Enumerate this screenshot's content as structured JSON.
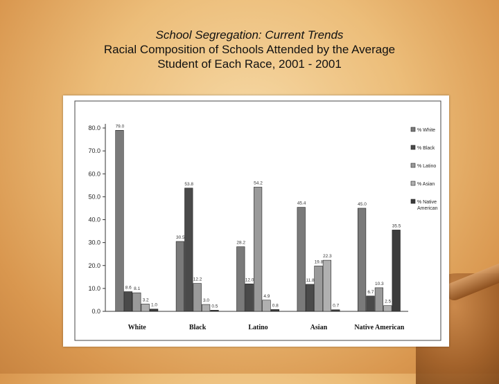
{
  "slide": {
    "title_line1": "School Segregation: Current Trends",
    "title_line2": "Racial Composition of Schools Attended by the Average",
    "title_line3": "Student of Each Race, 2001 - 2001"
  },
  "chart_data": {
    "type": "bar",
    "categories": [
      "White",
      "Black",
      "Latino",
      "Asian",
      "Native American"
    ],
    "series": [
      {
        "name": "% White",
        "color": "#7a7a7a",
        "values": [
          79.0,
          30.5,
          28.2,
          45.4,
          45.0
        ]
      },
      {
        "name": "% Black",
        "color": "#4a4a4a",
        "values": [
          8.6,
          53.8,
          12.0,
          11.8,
          6.7
        ]
      },
      {
        "name": "% Latino",
        "color": "#9a9a9a",
        "values": [
          8.1,
          12.2,
          54.2,
          19.8,
          10.3
        ]
      },
      {
        "name": "% Asian",
        "color": "#b0b0b0",
        "values": [
          3.2,
          3.0,
          4.9,
          22.3,
          2.5
        ]
      },
      {
        "name": "% Native American",
        "color": "#3c3c3c",
        "values": [
          1.0,
          0.5,
          0.8,
          0.7,
          35.5
        ]
      }
    ],
    "legend_labels": [
      "% White",
      "% Black",
      "% Latino",
      "% Asian",
      "% Native",
      "American"
    ],
    "y_ticks": [
      "0.0",
      "10.0",
      "20.0",
      "30.0",
      "40.0",
      "50.0",
      "60.0",
      "70.0",
      "80.0"
    ],
    "value_labels": [
      [
        "79.0",
        "8.6",
        "8.1",
        "3.2",
        "1.0"
      ],
      [
        "30.5",
        "53.8",
        "12.2",
        "3.0",
        "0.5"
      ],
      [
        "28.2",
        "12.0",
        "54.2",
        "4.9",
        "0.8"
      ],
      [
        "45.4",
        "11.8",
        "19.8",
        "22.3",
        "0.7"
      ],
      [
        "45.0",
        "6.7",
        "10.3",
        "2.5",
        "35.5"
      ]
    ],
    "ylim": [
      0,
      80
    ],
    "grid": false,
    "legend_position": "right"
  }
}
